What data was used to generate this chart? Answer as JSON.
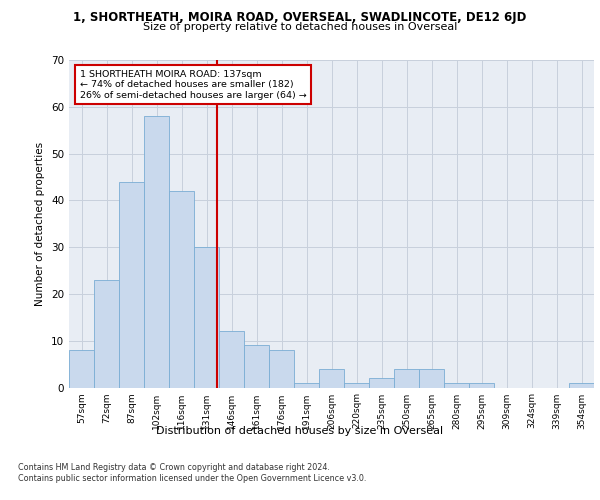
{
  "title_line1": "1, SHORTHEATH, MOIRA ROAD, OVERSEAL, SWADLINCOTE, DE12 6JD",
  "title_line2": "Size of property relative to detached houses in Overseal",
  "xlabel": "Distribution of detached houses by size in Overseal",
  "ylabel": "Number of detached properties",
  "bin_labels": [
    "57sqm",
    "72sqm",
    "87sqm",
    "102sqm",
    "116sqm",
    "131sqm",
    "146sqm",
    "161sqm",
    "176sqm",
    "191sqm",
    "206sqm",
    "220sqm",
    "235sqm",
    "250sqm",
    "265sqm",
    "280sqm",
    "295sqm",
    "309sqm",
    "324sqm",
    "339sqm",
    "354sqm"
  ],
  "bar_heights": [
    8,
    23,
    44,
    58,
    42,
    30,
    12,
    9,
    8,
    1,
    4,
    1,
    2,
    4,
    4,
    1,
    1,
    0,
    0,
    0,
    1
  ],
  "bar_color": "#c9d9ed",
  "bar_edgecolor": "#7aadd4",
  "vline_x_index": 5,
  "annotation_text": "1 SHORTHEATH MOIRA ROAD: 137sqm\n← 74% of detached houses are smaller (182)\n26% of semi-detached houses are larger (64) →",
  "annotation_box_color": "#ffffff",
  "annotation_box_edgecolor": "#cc0000",
  "vline_color": "#cc0000",
  "grid_color": "#c8d0dc",
  "bg_color": "#e8edf4",
  "ylim": [
    0,
    70
  ],
  "yticks": [
    0,
    10,
    20,
    30,
    40,
    50,
    60,
    70
  ],
  "footnote1": "Contains HM Land Registry data © Crown copyright and database right 2024.",
  "footnote2": "Contains public sector information licensed under the Open Government Licence v3.0."
}
